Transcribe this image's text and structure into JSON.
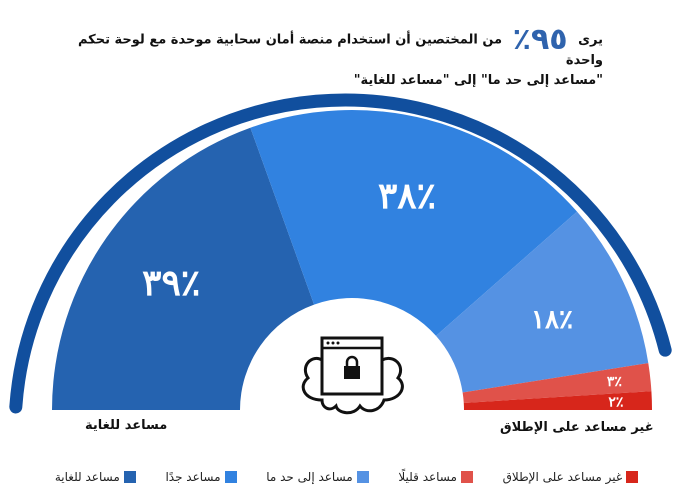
{
  "title": {
    "prefix": "يرى",
    "highlight": "٩٥٪",
    "line1": "من المختصين أن استخدام منصة أمان سحابية موحدة مع لوحة تحكم واحدة",
    "line2": "\"مساعد إلى حد ما\" إلى \"مساعد للغاية\""
  },
  "end_labels": {
    "left": "مساعد للغاية",
    "right": "غير مساعد على الإطلاق"
  },
  "colors": {
    "ring": "#114f9e",
    "accent": "#2f63ad"
  },
  "icon": "cloud-browser-lock-icon",
  "chart_data": {
    "type": "pie",
    "shape": "half-donut",
    "legend_position": "bottom",
    "categories": [
      "مساعد للغاية",
      "مساعد جدًا",
      "مساعد إلى حد ما",
      "مساعد قليلًا",
      "غير مساعد على الإطلاق"
    ],
    "values": [
      39,
      38,
      18,
      3,
      2
    ],
    "labels": [
      "٪٣٩",
      "٪٣٨",
      "٪١٨",
      "٪٣",
      "٪٢"
    ],
    "colors": [
      "#2563b0",
      "#3182e0",
      "#5592e3",
      "#e0524a",
      "#d7261b"
    ]
  }
}
